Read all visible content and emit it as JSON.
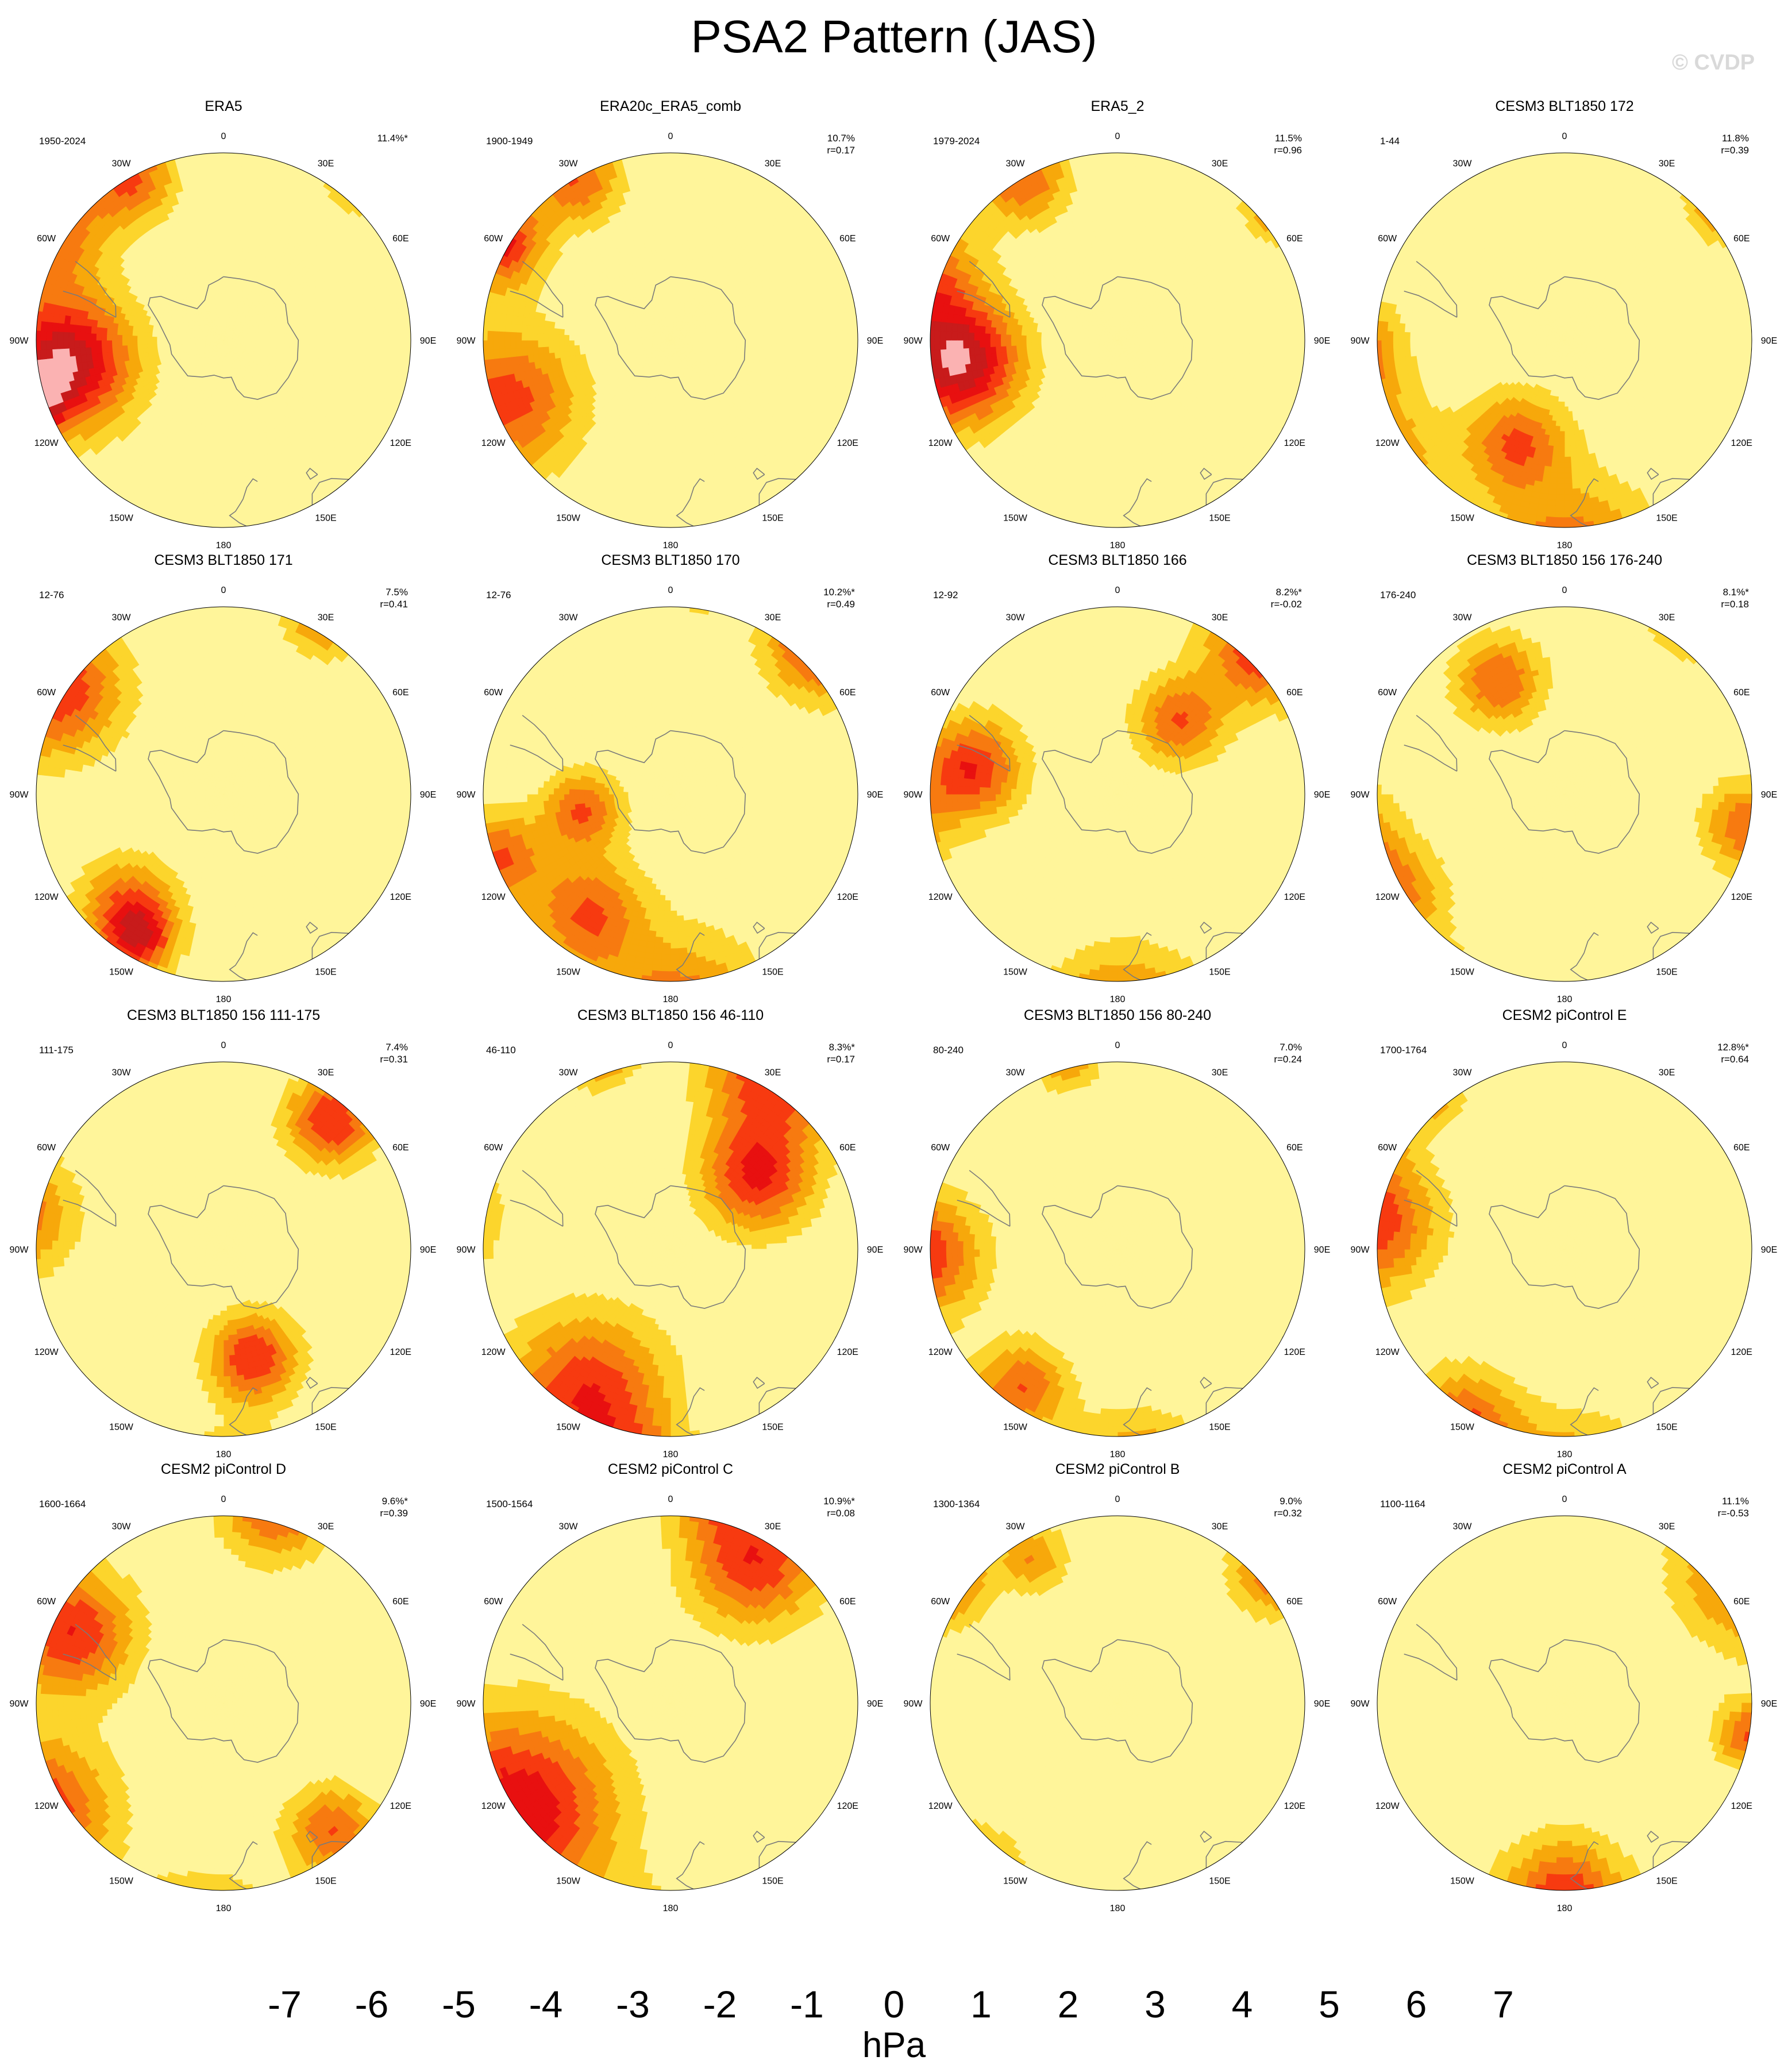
{
  "title": "PSA2 Pattern (JAS)",
  "watermark": "© CVDP",
  "chart_data": {
    "type": "heatmap",
    "projection": "south-polar stereographic",
    "variable": "sea level pressure anomaly",
    "units": "hPa",
    "contour_levels": [
      -7,
      -6,
      -5,
      -4,
      -3,
      -2,
      -1,
      0,
      1,
      2,
      3,
      4,
      5,
      6,
      7
    ],
    "colors": [
      "#8a20f0",
      "#1010f8",
      "#2a3fe8",
      "#3a78e8",
      "#2896f5",
      "#00bfff",
      "#73c7f2",
      "#b3def2",
      "#fff59a",
      "#fcd52c",
      "#f7a80b",
      "#f77a10",
      "#f73a10",
      "#e81010",
      "#c81b1b",
      "#fbb2b2"
    ],
    "longitude_labels": [
      "0",
      "30E",
      "60E",
      "90E",
      "120E",
      "150E",
      "180",
      "150W",
      "120W",
      "90W",
      "60W",
      "30W"
    ],
    "panels": [
      {
        "name": "ERA5",
        "years": "1950-2024",
        "pct": "11.4%*",
        "r": "",
        "blobs": [
          [
            252,
            -30,
            5.2,
            30,
            -1.7
          ],
          [
            302,
            -28,
            4.5,
            55,
            2.2
          ],
          [
            262,
            -42,
            7,
            60,
            -1.3
          ],
          [
            40,
            -25,
            5.5,
            35,
            1.3
          ],
          [
            330,
            -35,
            4,
            40,
            1.3
          ],
          [
            268,
            -5,
            2.5,
            25,
            3
          ]
        ]
      },
      {
        "name": "ERA20c_ERA5_comb",
        "years": "1900-1949",
        "pct": "10.7%",
        "r": "r=0.17",
        "blobs": [
          [
            250,
            -38,
            4.5,
            65,
            3.2
          ],
          [
            300,
            -32,
            5.5,
            40,
            2.5
          ],
          [
            330,
            -35,
            4,
            40,
            1.2
          ],
          [
            220,
            -12,
            3.5,
            20,
            -1.2
          ],
          [
            130,
            -10,
            5,
            50,
            -0.6
          ]
        ]
      },
      {
        "name": "ERA5_2",
        "years": "1979-2024",
        "pct": "11.5%",
        "r": "r=0.96",
        "blobs": [
          [
            250,
            -22,
            5.2,
            30,
            -2.3
          ],
          [
            262,
            -42,
            7,
            55,
            -1.6
          ],
          [
            288,
            -28,
            4.5,
            55,
            2.2
          ],
          [
            50,
            -28,
            5,
            30,
            1.3
          ],
          [
            330,
            -35,
            4,
            40,
            1
          ],
          [
            275,
            -8,
            2.5,
            25,
            2.5
          ]
        ]
      },
      {
        "name": "CESM3 BLT1850 172",
        "years": "1-44",
        "pct": "11.8%",
        "r": "r=0.39",
        "blobs": [
          [
            178,
            -22,
            4.8,
            80,
            -3.7
          ],
          [
            240,
            -20,
            5,
            70,
            1.6
          ],
          [
            268,
            -27,
            4.5,
            45,
            -1.6
          ],
          [
            205,
            -55,
            4,
            45,
            -1.1
          ],
          [
            50,
            -28,
            4,
            35,
            1.2
          ]
        ]
      },
      {
        "name": "CESM3 BLT1850 171",
        "years": "12-76",
        "pct": "7.5%",
        "r": "r=0.41",
        "blobs": [
          [
            180,
            -18,
            5,
            40,
            -1.7
          ],
          [
            302,
            -32,
            5,
            60,
            1.8
          ],
          [
            220,
            -45,
            4,
            45,
            1.3
          ],
          [
            210,
            -40,
            4,
            30,
            -1.1
          ],
          [
            30,
            -30,
            4,
            35,
            1.2
          ],
          [
            245,
            -12,
            2.5,
            25,
            -1.5
          ]
        ]
      },
      {
        "name": "CESM3 BLT1850 170",
        "years": "12-76",
        "pct": "10.2%*",
        "r": "r=0.49",
        "blobs": [
          [
            178,
            -22,
            4.8,
            80,
            -3.3
          ],
          [
            250,
            -36,
            4,
            40,
            1.3
          ],
          [
            215,
            -46,
            4,
            50,
            1.5
          ],
          [
            260,
            -62,
            4,
            35,
            -1.1
          ],
          [
            45,
            -28,
            5,
            50,
            1.4
          ],
          [
            10,
            -30,
            3,
            20,
            1
          ],
          [
            230,
            -28,
            3,
            25,
            0.8
          ]
        ]
      },
      {
        "name": "CESM3 BLT1850 166",
        "years": "12-92",
        "pct": "8.2%*",
        "r": "r=-0.02",
        "blobs": [
          [
            178,
            -22,
            4.8,
            70,
            -3.3
          ],
          [
            262,
            -22,
            5,
            50,
            1.5
          ],
          [
            280,
            -45,
            5,
            45,
            -1.2
          ],
          [
            45,
            -30,
            5,
            50,
            1.4
          ],
          [
            330,
            -25,
            3,
            20,
            1
          ],
          [
            40,
            -60,
            4,
            40,
            -1.1
          ]
        ]
      },
      {
        "name": "CESM3 BLT1850 156 176-240",
        "years": "176-240",
        "pct": "8.1%*",
        "r": "r=0.18",
        "blobs": [
          [
            210,
            -18,
            5,
            50,
            -2.8
          ],
          [
            260,
            -22,
            5,
            50,
            -2.8
          ],
          [
            240,
            -30,
            4,
            50,
            1.5
          ],
          [
            35,
            -25,
            4,
            40,
            -1.5
          ],
          [
            128,
            -22,
            3,
            30,
            1.2
          ],
          [
            330,
            -50,
            4,
            40,
            -0.8
          ],
          [
            100,
            -35,
            4,
            40,
            1
          ]
        ]
      },
      {
        "name": "CESM3 BLT1850 156 111-175",
        "years": "111-175",
        "pct": "7.4%",
        "r": "r=0.31",
        "blobs": [
          [
            178,
            -18,
            5,
            55,
            -3.3
          ],
          [
            280,
            -28,
            4,
            55,
            -1.5
          ],
          [
            230,
            -22,
            3.5,
            30,
            1.2
          ],
          [
            315,
            -20,
            2,
            25,
            0.8
          ],
          [
            165,
            -55,
            5,
            40,
            -0.8
          ],
          [
            40,
            -40,
            5,
            40,
            -0.8
          ]
        ]
      },
      {
        "name": "CESM3 BLT1850 156 46-110",
        "years": "46-110",
        "pct": "8.3%*",
        "r": "r=0.17",
        "blobs": [
          [
            190,
            -22,
            4.5,
            50,
            -1.6
          ],
          [
            210,
            -40,
            5,
            70,
            1.5
          ],
          [
            278,
            -22,
            5,
            50,
            1.5
          ],
          [
            30,
            -30,
            5,
            60,
            -1.5
          ],
          [
            340,
            -28,
            4,
            35,
            1.2
          ],
          [
            50,
            -55,
            5,
            50,
            -0.8
          ]
        ]
      },
      {
        "name": "CESM3 BLT1850 156 80-240",
        "years": "80-240",
        "pct": "7.0%",
        "r": "r=0.24",
        "blobs": [
          [
            175,
            -20,
            5,
            65,
            -2.2
          ],
          [
            268,
            -32,
            5,
            55,
            -1.6
          ],
          [
            215,
            -40,
            4,
            40,
            1.2
          ],
          [
            345,
            -32,
            3,
            30,
            1.2
          ],
          [
            225,
            -25,
            3,
            25,
            1
          ]
        ]
      },
      {
        "name": "CESM2 piControl E",
        "years": "1700-1764",
        "pct": "12.8%*",
        "r": "r=0.64",
        "blobs": [
          [
            178,
            -18,
            4.8,
            70,
            -3.8
          ],
          [
            210,
            -30,
            4.5,
            50,
            2
          ],
          [
            278,
            -32,
            5,
            60,
            -1.8
          ],
          [
            300,
            -22,
            4,
            40,
            1.2
          ],
          [
            245,
            -12,
            4,
            30,
            1
          ],
          [
            320,
            -30,
            3,
            30,
            1
          ]
        ]
      },
      {
        "name": "CESM2 piControl D",
        "years": "1600-1664",
        "pct": "9.6%*",
        "r": "r=0.39",
        "blobs": [
          [
            185,
            -18,
            4.8,
            65,
            -2.6
          ],
          [
            240,
            -28,
            5,
            65,
            2.2
          ],
          [
            295,
            -40,
            5,
            55,
            -1.6
          ],
          [
            15,
            -30,
            4.5,
            50,
            1.5
          ],
          [
            315,
            -18,
            4,
            40,
            1.3
          ],
          [
            140,
            -40,
            4,
            40,
            -1
          ]
        ]
      },
      {
        "name": "CESM2 piControl C",
        "years": "1500-1564",
        "pct": "10.9%*",
        "r": "r=0.08",
        "blobs": [
          [
            188,
            -15,
            4.5,
            60,
            -2.8
          ],
          [
            235,
            -35,
            6,
            85,
            2.3
          ],
          [
            30,
            -40,
            5,
            60,
            -1.6
          ],
          [
            10,
            -25,
            4,
            40,
            1.2
          ],
          [
            320,
            -15,
            3,
            30,
            1
          ]
        ]
      },
      {
        "name": "CESM2 piControl B",
        "years": "1300-1364",
        "pct": "9.0%",
        "r": "r=0.32",
        "blobs": [
          [
            220,
            -20,
            5,
            55,
            -3.3
          ],
          [
            305,
            -28,
            4.5,
            40,
            1.5
          ],
          [
            330,
            -40,
            3,
            30,
            1.2
          ],
          [
            50,
            -30,
            4,
            40,
            1.4
          ],
          [
            80,
            -18,
            3,
            25,
            -0.8
          ]
        ]
      },
      {
        "name": "CESM2 piControl A",
        "years": "1100-1164",
        "pct": "11.1%",
        "r": "r=-0.53",
        "blobs": [
          [
            55,
            -22,
            5,
            70,
            -2.6
          ],
          [
            225,
            -18,
            4,
            55,
            -2.5
          ],
          [
            180,
            -32,
            5,
            55,
            2.2
          ],
          [
            270,
            -12,
            3,
            40,
            1.3
          ],
          [
            20,
            -15,
            3,
            30,
            1.2
          ],
          [
            100,
            -35,
            4,
            30,
            -1
          ]
        ]
      }
    ],
    "colorbar": {
      "labels": [
        "-7",
        "-6",
        "-5",
        "-4",
        "-3",
        "-2",
        "-1",
        "0",
        "1",
        "2",
        "3",
        "4",
        "5",
        "6",
        "7"
      ]
    }
  }
}
